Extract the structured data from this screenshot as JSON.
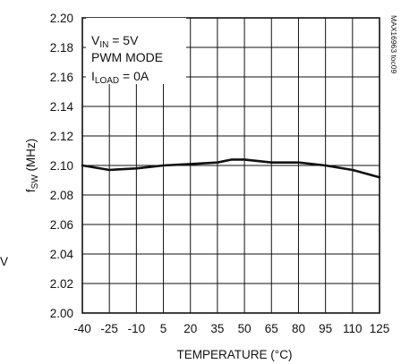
{
  "chart_data": {
    "type": "line",
    "xlabel": "TEMPERATURE (°C)",
    "ylabel_main": "f",
    "ylabel_sub": "SW",
    "ylabel_unit": " (MHz)",
    "xlim": [
      -40,
      125
    ],
    "ylim": [
      2.0,
      2.2
    ],
    "x_ticks": [
      -40,
      -25,
      -10,
      5,
      20,
      35,
      50,
      65,
      80,
      95,
      110,
      125
    ],
    "x_tick_labels": [
      "-40",
      "-25",
      "-10",
      "5",
      "20",
      "35",
      "50",
      "65",
      "80",
      "95",
      "110",
      "125"
    ],
    "y_ticks": [
      2.0,
      2.02,
      2.04,
      2.06,
      2.08,
      2.1,
      2.12,
      2.14,
      2.16,
      2.18,
      2.2
    ],
    "y_tick_labels": [
      "2.00",
      "2.02",
      "2.04",
      "2.06",
      "2.08",
      "2.10",
      "2.12",
      "2.14",
      "2.16",
      "2.18",
      "2.20"
    ],
    "grid": true,
    "series": [
      {
        "x": [
          -40,
          -25,
          -10,
          5,
          20,
          35,
          43,
          50,
          65,
          80,
          95,
          110,
          125
        ],
        "y": [
          2.1,
          2.097,
          2.098,
          2.1,
          2.101,
          2.102,
          2.104,
          2.104,
          2.102,
          2.102,
          2.1,
          2.097,
          2.092
        ]
      }
    ],
    "annotations": [
      {
        "main": "V",
        "sub": "IN",
        "rest": " = 5V"
      },
      {
        "main": "PWM MODE",
        "sub": "",
        "rest": ""
      },
      {
        "main": "I",
        "sub": "LOAD",
        "rest": " = 0A"
      }
    ],
    "watermark": "MAX16963 toc09",
    "margin_text": "V"
  },
  "colors": {
    "line": "#111111",
    "grid": "#111111",
    "background": "#ffffff"
  }
}
